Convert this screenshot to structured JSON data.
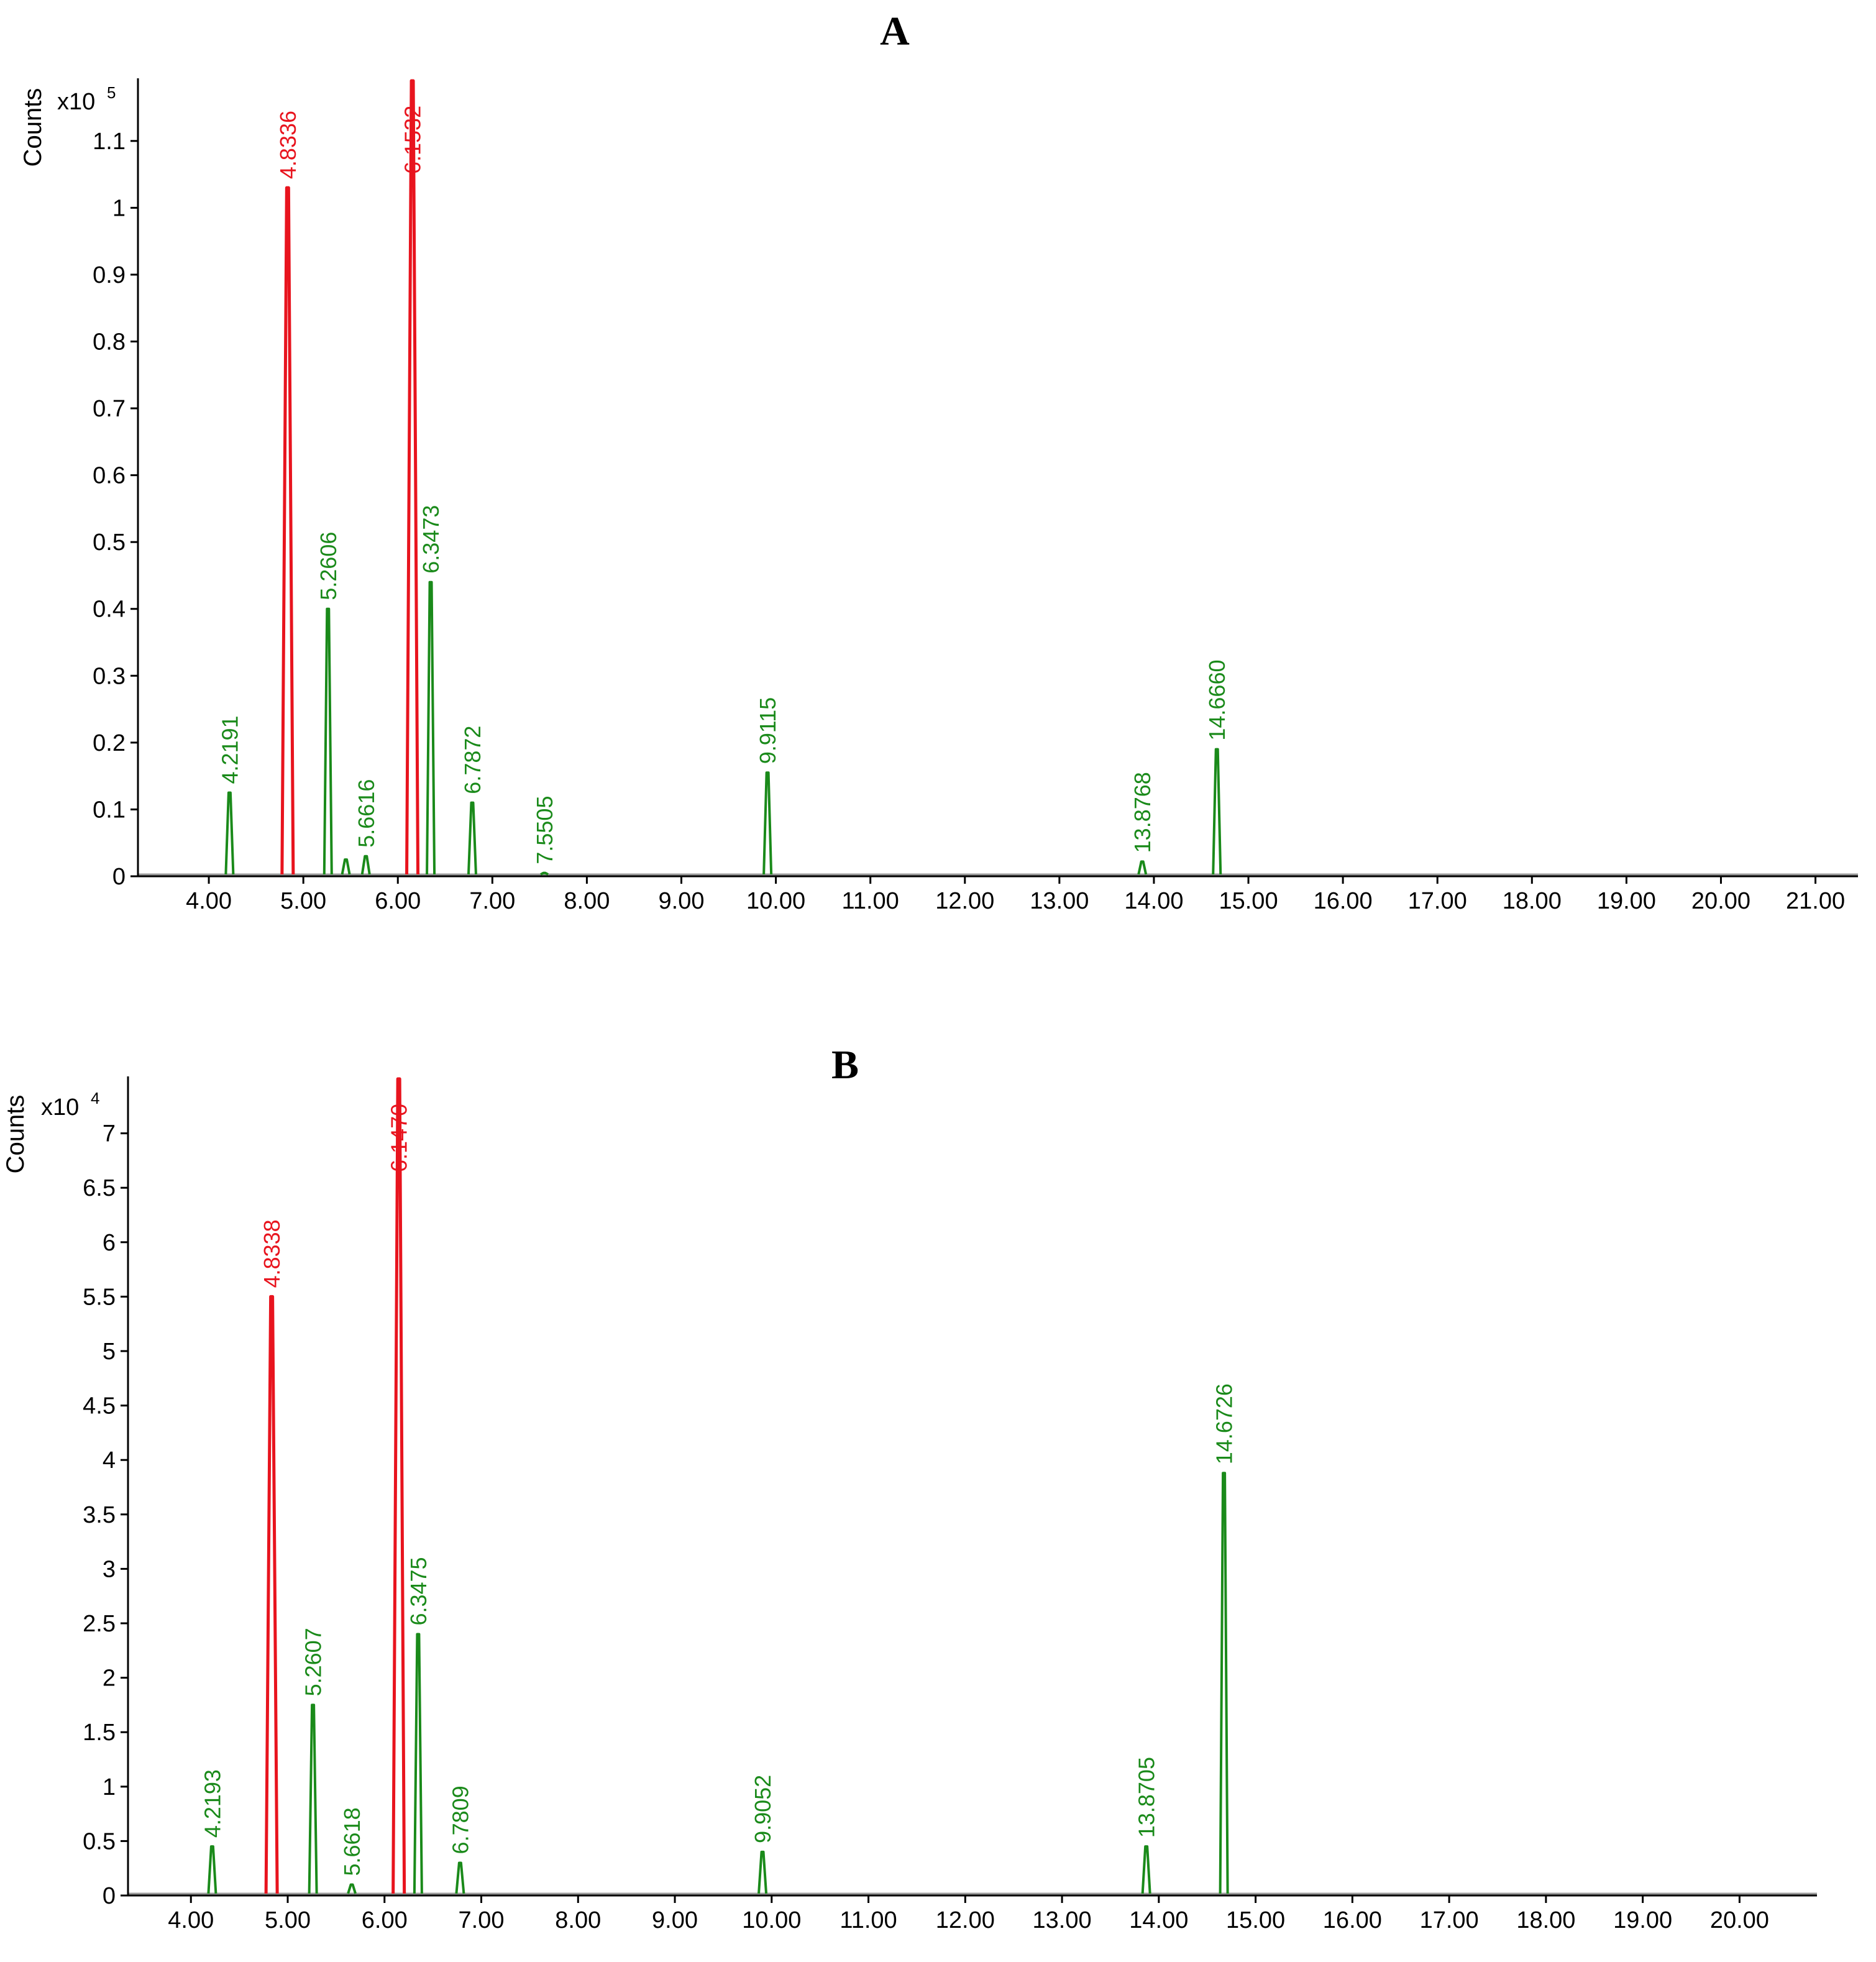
{
  "chart_data": [
    {
      "type": "line",
      "panel_label": "A",
      "ylabel": "Counts",
      "y_multiplier": "x10",
      "y_exponent": "5",
      "xlim": [
        3.25,
        21.45
      ],
      "ylim": [
        0,
        1.19
      ],
      "x_ticks": [
        "4.00",
        "5.00",
        "6.00",
        "7.00",
        "8.00",
        "9.00",
        "10.00",
        "11.00",
        "12.00",
        "13.00",
        "14.00",
        "15.00",
        "16.00",
        "17.00",
        "18.00",
        "19.00",
        "20.00",
        "21.00"
      ],
      "y_ticks": [
        "0",
        "0.1",
        "0.2",
        "0.3",
        "0.4",
        "0.5",
        "0.6",
        "0.7",
        "0.8",
        "0.9",
        "1",
        "1.1"
      ],
      "colors": {
        "highlight": "#e8141e",
        "peak": "#1a8a1a",
        "baseline": "#9a9a9a"
      },
      "peaks": [
        {
          "x": 4.2191,
          "y": 0.125,
          "label": "4.2191",
          "highlight": false
        },
        {
          "x": 4.8336,
          "y": 1.03,
          "label": "4.8336",
          "highlight": true
        },
        {
          "x": 5.2606,
          "y": 0.4,
          "label": "5.2606",
          "highlight": false
        },
        {
          "x": 5.45,
          "y": 0.025,
          "label": "",
          "highlight": false
        },
        {
          "x": 5.6616,
          "y": 0.03,
          "label": "5.6616",
          "highlight": false
        },
        {
          "x": 6.1532,
          "y": 1.19,
          "label": "6.1532",
          "highlight": true
        },
        {
          "x": 6.3473,
          "y": 0.44,
          "label": "6.3473",
          "highlight": false
        },
        {
          "x": 6.7872,
          "y": 0.11,
          "label": "6.7872",
          "highlight": false
        },
        {
          "x": 7.5505,
          "y": 0.005,
          "label": "7.5505",
          "highlight": false
        },
        {
          "x": 9.9115,
          "y": 0.155,
          "label": "9.9115",
          "highlight": false
        },
        {
          "x": 13.8768,
          "y": 0.022,
          "label": "13.8768",
          "highlight": false
        },
        {
          "x": 14.666,
          "y": 0.19,
          "label": "14.6660",
          "highlight": false
        }
      ]
    },
    {
      "type": "line",
      "panel_label": "B",
      "ylabel": "Counts",
      "y_multiplier": "x10",
      "y_exponent": "4",
      "xlim": [
        3.35,
        20.8
      ],
      "ylim": [
        0,
        7.5
      ],
      "x_ticks": [
        "4.00",
        "5.00",
        "6.00",
        "7.00",
        "8.00",
        "9.00",
        "10.00",
        "11.00",
        "12.00",
        "13.00",
        "14.00",
        "15.00",
        "16.00",
        "17.00",
        "18.00",
        "19.00",
        "20.00"
      ],
      "y_ticks": [
        "0",
        "0.5",
        "1",
        "1.5",
        "2",
        "2.5",
        "3",
        "3.5",
        "4",
        "4.5",
        "5",
        "5.5",
        "6",
        "6.5",
        "7"
      ],
      "colors": {
        "highlight": "#e8141e",
        "peak": "#1a8a1a",
        "baseline": "#9a9a9a"
      },
      "peaks": [
        {
          "x": 4.2193,
          "y": 0.45,
          "label": "4.2193",
          "highlight": false
        },
        {
          "x": 4.8338,
          "y": 5.5,
          "label": "4.8338",
          "highlight": true
        },
        {
          "x": 5.2607,
          "y": 1.75,
          "label": "5.2607",
          "highlight": false
        },
        {
          "x": 5.6618,
          "y": 0.1,
          "label": "5.6618",
          "highlight": false
        },
        {
          "x": 6.147,
          "y": 7.5,
          "label": "6.1470",
          "highlight": true
        },
        {
          "x": 6.3475,
          "y": 2.4,
          "label": "6.3475",
          "highlight": false
        },
        {
          "x": 6.7809,
          "y": 0.3,
          "label": "6.7809",
          "highlight": false
        },
        {
          "x": 9.9052,
          "y": 0.4,
          "label": "9.9052",
          "highlight": false
        },
        {
          "x": 13.8705,
          "y": 0.45,
          "label": "13.8705",
          "highlight": false
        },
        {
          "x": 14.6726,
          "y": 3.88,
          "label": "14.6726",
          "highlight": false
        }
      ]
    }
  ]
}
